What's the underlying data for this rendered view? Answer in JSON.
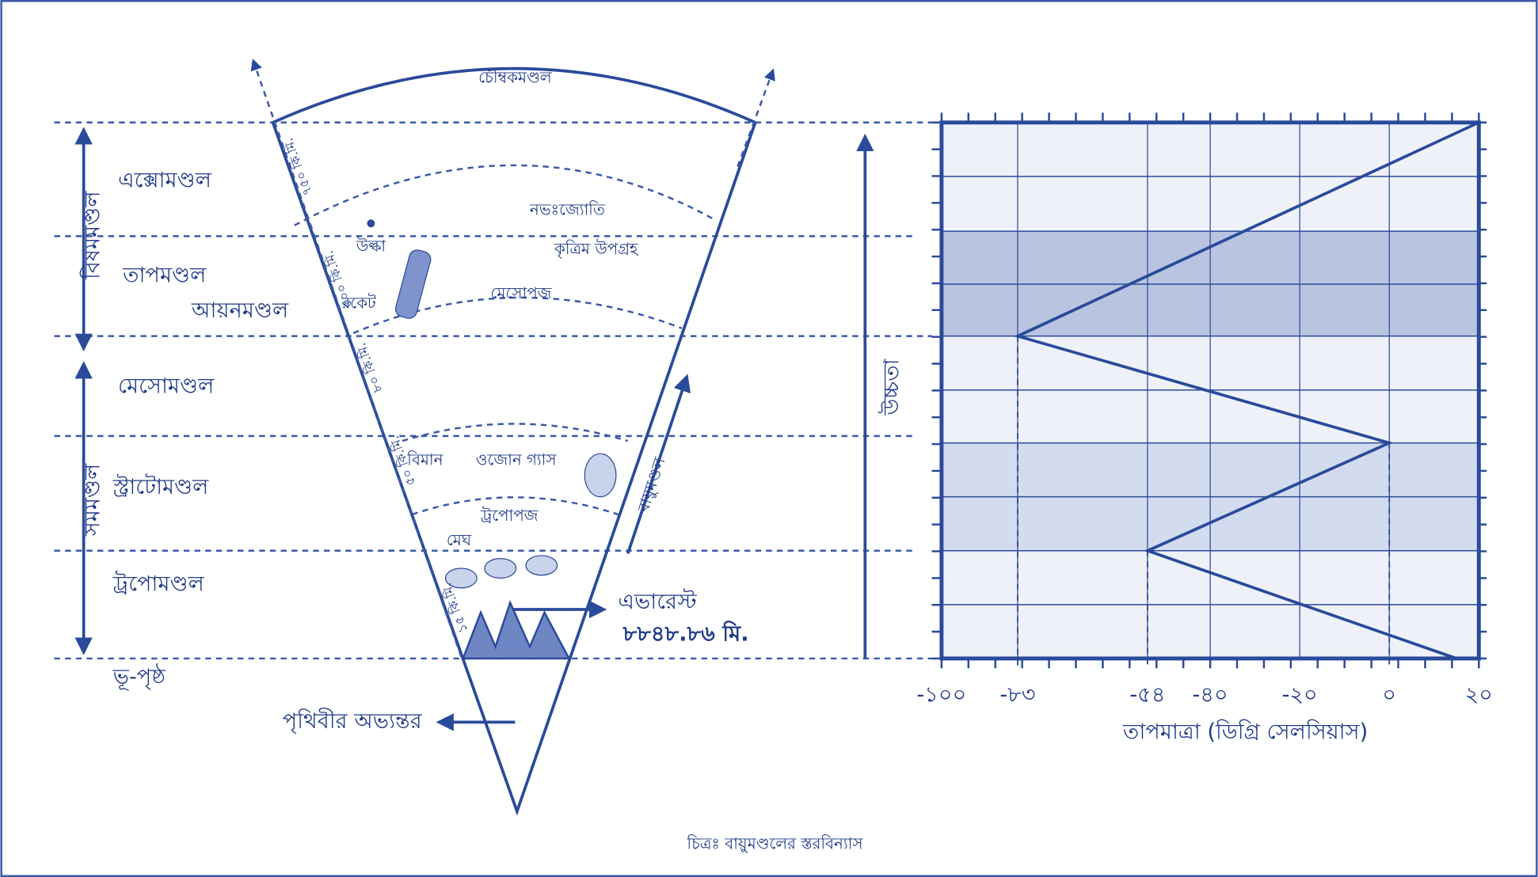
{
  "caption": "চিত্রঃ বায়ুমণ্ডলের স্তরবিন্যাস",
  "magnetosphere": "চৌম্বকমণ্ডল",
  "layers": [
    "এক্সোমণ্ডল",
    "তাপমণ্ডল",
    "আয়নমণ্ডল",
    "মেসোমণ্ডল",
    "স্ট্রাটোমণ্ডল",
    "ট্রপোমণ্ডল"
  ],
  "surface": "ভূ-পৃষ্ঠ",
  "groups": [
    "বিষমমণ্ডল",
    "সমমণ্ডল"
  ],
  "altitudes": [
    "৭৫০ কি.মি.",
    "৫০০ কি.মি.",
    "৮০ কি.মি.",
    "৫০ কি.মি.",
    "১৫ কি.মি."
  ],
  "objects": {
    "meteor": "উল্কা",
    "aurora": "নভঃজ্যোতি",
    "satellite": "কৃত্রিম উপগ্রহ",
    "rocket": "রকেট",
    "mesopause": "মেসোপজ",
    "airplane": "বিমান",
    "ozone": "ওজোন গ্যাস",
    "tropopause": "ট্রপোপজ",
    "cloud": "মেঘ"
  },
  "everest": {
    "name": "এভারেস্ট",
    "height": "৮৮৪৮.৮৬ মি."
  },
  "earth_interior": "পৃথিবীর অভ্যন্তর",
  "atmosphere": "বায়ুমণ্ডল",
  "chart_data": {
    "type": "line",
    "xlabel": "তাপমাত্রা (ডিগ্রি সেলসিয়াস)",
    "ylabel": "উচ্চতা",
    "xlim": [
      -100,
      20
    ],
    "xticks": [
      {
        "value": -100,
        "label": "-১০০"
      },
      {
        "value": -83,
        "label": "-৮৩"
      },
      {
        "value": -54,
        "label": "-৫৪"
      },
      {
        "value": -40,
        "label": "-৪০"
      },
      {
        "value": -20,
        "label": "-২০"
      },
      {
        "value": 0,
        "label": "০"
      },
      {
        "value": 20,
        "label": "২০"
      }
    ],
    "values": [
      15,
      -54,
      0,
      -83,
      20
    ],
    "color": "#2a4a9a"
  }
}
